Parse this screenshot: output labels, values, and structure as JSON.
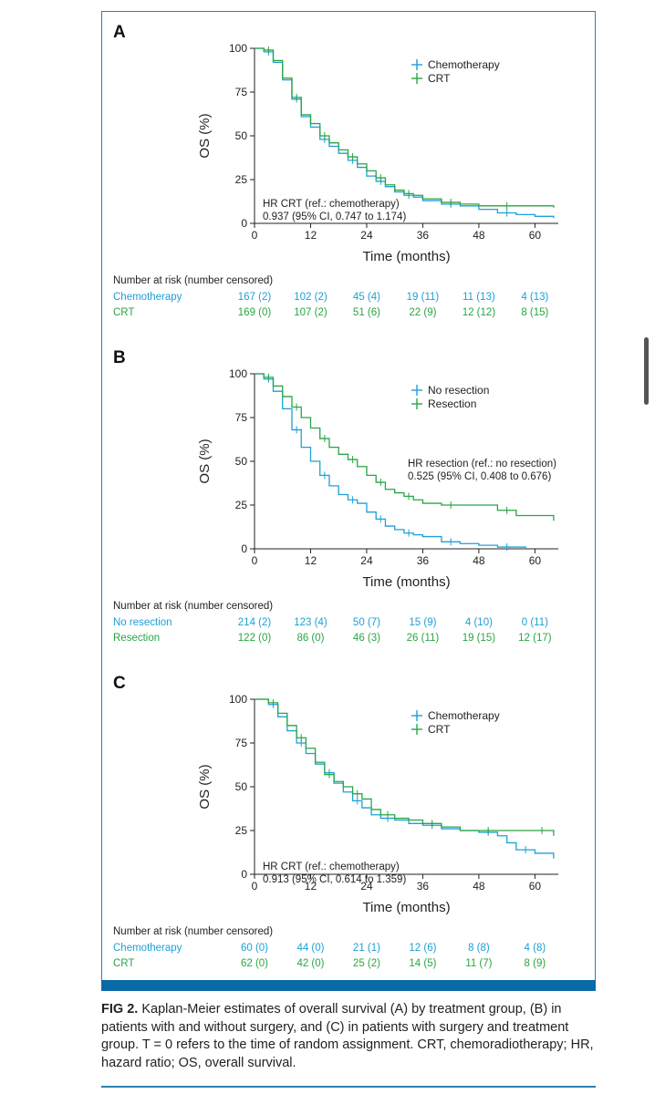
{
  "caption": {
    "label": "FIG 2.",
    "text": "Kaplan-Meier estimates of overall survival (A) by treatment group, (B) in patients with and without surgery, and (C) in patients with surgery and treatment group. T = 0 refers to the time of random assignment. CRT, chemoradiotherapy; HR, hazard ratio; OS, overall survival."
  },
  "colors": {
    "blue": "#1da0d8",
    "green": "#2aa544",
    "frame": "#2f7fb0",
    "bar": "#0a6aa8"
  },
  "chart_data": [
    {
      "type": "line",
      "panel_label": "A",
      "title": "",
      "xlabel": "Time (months)",
      "ylabel": "OS (%)",
      "xlim": [
        0,
        65
      ],
      "ylim": [
        0,
        100
      ],
      "xticks": [
        0,
        12,
        24,
        36,
        48,
        60
      ],
      "yticks": [
        0,
        25,
        50,
        75,
        100
      ],
      "legend_position": "top-right",
      "annotation": [
        "HR CRT (ref.: chemotherapy)",
        "0.937 (95% CI, 0.747 to 1.174)"
      ],
      "series": [
        {
          "name": "Chemotherapy",
          "color": "blue",
          "x": [
            0,
            2,
            4,
            6,
            8,
            10,
            12,
            14,
            16,
            18,
            20,
            22,
            24,
            26,
            28,
            30,
            32,
            34,
            36,
            40,
            44,
            48,
            52,
            56,
            60,
            64
          ],
          "y": [
            100,
            98,
            92,
            82,
            71,
            61,
            55,
            48,
            44,
            40,
            36,
            32,
            27,
            24,
            21,
            18,
            16,
            15,
            13,
            11,
            10,
            8,
            6,
            5,
            4,
            3
          ]
        },
        {
          "name": "CRT",
          "color": "green",
          "x": [
            0,
            2,
            4,
            6,
            8,
            10,
            12,
            14,
            16,
            18,
            20,
            22,
            24,
            26,
            28,
            30,
            32,
            34,
            36,
            40,
            44,
            48,
            52,
            56,
            60,
            64
          ],
          "y": [
            100,
            99,
            93,
            83,
            72,
            62,
            57,
            50,
            46,
            42,
            38,
            34,
            30,
            26,
            22,
            19,
            17,
            16,
            14,
            12,
            11,
            10,
            10,
            10,
            10,
            9
          ]
        }
      ],
      "risk_table": {
        "title": "Number at risk (number censored)",
        "rows": [
          {
            "label": "Chemotherapy",
            "color": "blue",
            "values": [
              "167 (2)",
              "102 (2)",
              "45 (4)",
              "19 (11)",
              "11 (13)",
              "4 (13)"
            ]
          },
          {
            "label": "CRT",
            "color": "green",
            "values": [
              "169 (0)",
              "107 (2)",
              "51 (6)",
              "22 (9)",
              "12 (12)",
              "8 (15)"
            ]
          }
        ]
      }
    },
    {
      "type": "line",
      "panel_label": "B",
      "title": "",
      "xlabel": "Time (months)",
      "ylabel": "OS (%)",
      "xlim": [
        0,
        65
      ],
      "ylim": [
        0,
        100
      ],
      "xticks": [
        0,
        12,
        24,
        36,
        48,
        60
      ],
      "yticks": [
        0,
        25,
        50,
        75,
        100
      ],
      "legend_position": "top-right",
      "annotation": [
        "HR resection (ref.: no resection)",
        "0.525 (95% CI, 0.408 to 0.676)"
      ],
      "series": [
        {
          "name": "No resection",
          "color": "blue",
          "x": [
            0,
            2,
            4,
            6,
            8,
            10,
            12,
            14,
            16,
            18,
            20,
            22,
            24,
            26,
            28,
            30,
            32,
            34,
            36,
            40,
            44,
            48,
            52,
            56,
            58
          ],
          "y": [
            100,
            97,
            90,
            80,
            68,
            58,
            50,
            42,
            36,
            31,
            28,
            26,
            21,
            17,
            13,
            11,
            9,
            8,
            7,
            4,
            3,
            2,
            1,
            1,
            0
          ]
        },
        {
          "name": "Resection",
          "color": "green",
          "x": [
            0,
            2,
            4,
            6,
            8,
            10,
            12,
            14,
            16,
            18,
            20,
            22,
            24,
            26,
            28,
            30,
            32,
            34,
            36,
            40,
            44,
            48,
            52,
            56,
            60,
            64
          ],
          "y": [
            100,
            98,
            93,
            87,
            81,
            75,
            69,
            63,
            58,
            54,
            51,
            47,
            42,
            38,
            34,
            32,
            30,
            28,
            26,
            25,
            25,
            25,
            22,
            19,
            19,
            16
          ]
        }
      ],
      "risk_table": {
        "title": "Number at risk (number censored)",
        "rows": [
          {
            "label": "No resection",
            "color": "blue",
            "values": [
              "214 (2)",
              "123 (4)",
              "50 (7)",
              "15 (9)",
              "4 (10)",
              "0 (11)"
            ]
          },
          {
            "label": "Resection",
            "color": "green",
            "values": [
              "122 (0)",
              "86 (0)",
              "46 (3)",
              "26 (11)",
              "19 (15)",
              "12 (17)"
            ]
          }
        ]
      }
    },
    {
      "type": "line",
      "panel_label": "C",
      "title": "",
      "xlabel": "Time (months)",
      "ylabel": "OS (%)",
      "xlim": [
        0,
        65
      ],
      "ylim": [
        0,
        100
      ],
      "xticks": [
        0,
        12,
        24,
        36,
        48,
        60
      ],
      "yticks": [
        0,
        25,
        50,
        75,
        100
      ],
      "legend_position": "top-right",
      "annotation": [
        "HR CRT (ref.: chemotherapy)",
        "0.913 (95% CI, 0.614 to 1.359)"
      ],
      "series": [
        {
          "name": "Chemotherapy",
          "color": "blue",
          "x": [
            0,
            3,
            5,
            7,
            9,
            11,
            13,
            15,
            17,
            19,
            21,
            23,
            25,
            27,
            30,
            33,
            36,
            40,
            44,
            48,
            52,
            54,
            56,
            60,
            64
          ],
          "y": [
            100,
            97,
            90,
            82,
            75,
            69,
            63,
            58,
            52,
            47,
            42,
            38,
            34,
            32,
            31,
            29,
            28,
            26,
            25,
            24,
            22,
            18,
            14,
            12,
            9
          ]
        },
        {
          "name": "CRT",
          "color": "green",
          "x": [
            0,
            3,
            5,
            7,
            9,
            11,
            13,
            15,
            17,
            19,
            21,
            23,
            25,
            27,
            30,
            33,
            36,
            40,
            44,
            48,
            52,
            56,
            60,
            63,
            64
          ],
          "y": [
            100,
            98,
            92,
            85,
            78,
            72,
            64,
            57,
            53,
            50,
            46,
            43,
            37,
            34,
            32,
            31,
            29,
            27,
            25,
            25,
            25,
            25,
            25,
            25,
            22
          ]
        }
      ],
      "risk_table": {
        "title": "Number at risk (number censored)",
        "rows": [
          {
            "label": "Chemotherapy",
            "color": "blue",
            "values": [
              "60 (0)",
              "44 (0)",
              "21 (1)",
              "12 (6)",
              "8 (8)",
              "4 (8)"
            ]
          },
          {
            "label": "CRT",
            "color": "green",
            "values": [
              "62 (0)",
              "42 (0)",
              "25 (2)",
              "14 (5)",
              "11 (7)",
              "8 (9)"
            ]
          }
        ]
      }
    }
  ]
}
